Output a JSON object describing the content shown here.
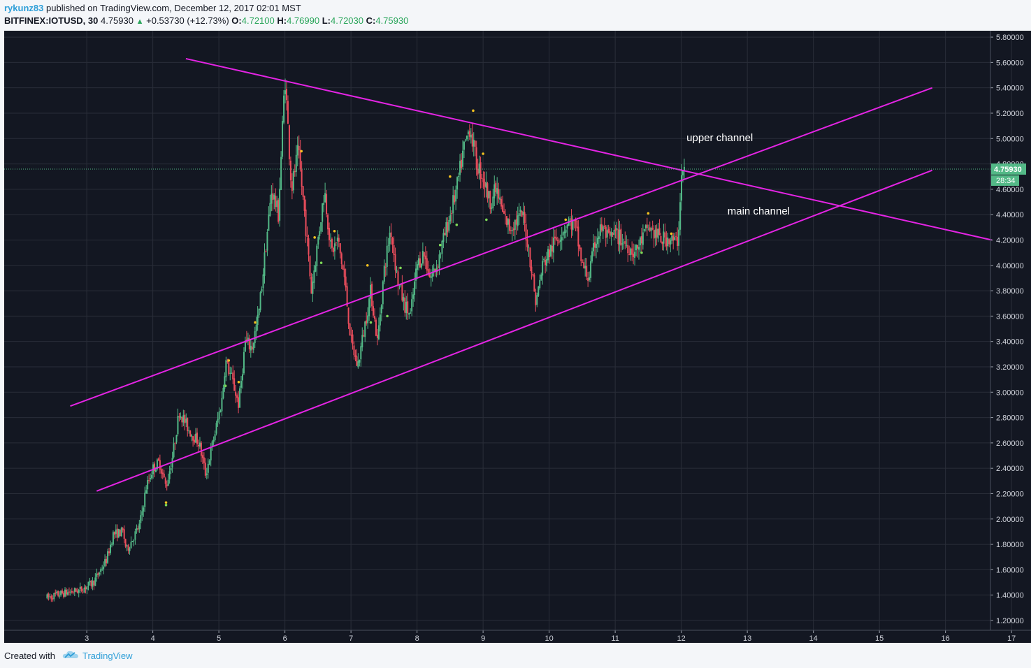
{
  "header": {
    "author": "rykunz83",
    "published_text": "published on TradingView.com, December 12, 2017 02:01 MST",
    "symbol": "BITFINEX:IOTUSD, 30",
    "last": "4.75930",
    "change": "+0.53730 (+12.73%)",
    "o_label": "O:",
    "o_value": "4.72100",
    "h_label": "H:",
    "h_value": "4.76990",
    "l_label": "L:",
    "l_value": "4.72030",
    "c_label": "C:",
    "c_value": "4.75930"
  },
  "footer": {
    "created_with": "Created with",
    "brand": "TradingView"
  },
  "chart_data": {
    "type": "candlestick",
    "symbol": "BITFINEX:IOTUSD",
    "interval": "30",
    "x_ticks": [
      "3",
      "4",
      "5",
      "6",
      "7",
      "8",
      "9",
      "10",
      "11",
      "12",
      "13",
      "14",
      "15",
      "16",
      "17"
    ],
    "y_ticks": [
      "1.20000",
      "1.40000",
      "1.60000",
      "1.80000",
      "2.00000",
      "2.20000",
      "2.40000",
      "2.60000",
      "2.80000",
      "3.00000",
      "3.20000",
      "3.40000",
      "3.60000",
      "3.80000",
      "4.00000",
      "4.20000",
      "4.40000",
      "4.60000",
      "4.80000",
      "5.00000",
      "5.20000",
      "5.40000",
      "5.60000",
      "5.80000"
    ],
    "xlim": [
      2.4,
      17.3
    ],
    "ylim": [
      1.1,
      5.85
    ],
    "grid": true,
    "last_price_label": "4.75930",
    "last_price": 4.7593,
    "countdown_label": "28:34",
    "price_path": [
      [
        2.4,
        1.38
      ],
      [
        2.6,
        1.41
      ],
      [
        2.9,
        1.44
      ],
      [
        3.1,
        1.5
      ],
      [
        3.3,
        1.68
      ],
      [
        3.4,
        1.88
      ],
      [
        3.55,
        1.9
      ],
      [
        3.6,
        1.75
      ],
      [
        3.8,
        1.95
      ],
      [
        3.9,
        2.25
      ],
      [
        4.0,
        2.4
      ],
      [
        4.1,
        2.45
      ],
      [
        4.2,
        2.25
      ],
      [
        4.3,
        2.5
      ],
      [
        4.4,
        2.85
      ],
      [
        4.55,
        2.7
      ],
      [
        4.7,
        2.6
      ],
      [
        4.8,
        2.35
      ],
      [
        4.95,
        2.7
      ],
      [
        5.05,
        2.95
      ],
      [
        5.1,
        3.25
      ],
      [
        5.2,
        3.1
      ],
      [
        5.3,
        2.9
      ],
      [
        5.4,
        3.4
      ],
      [
        5.5,
        3.35
      ],
      [
        5.6,
        3.6
      ],
      [
        5.7,
        4.1
      ],
      [
        5.8,
        4.6
      ],
      [
        5.9,
        4.4
      ],
      [
        6.0,
        5.5
      ],
      [
        6.1,
        4.6
      ],
      [
        6.2,
        4.9
      ],
      [
        6.3,
        4.4
      ],
      [
        6.4,
        3.8
      ],
      [
        6.5,
        4.2
      ],
      [
        6.6,
        4.6
      ],
      [
        6.7,
        4.1
      ],
      [
        6.8,
        4.2
      ],
      [
        6.9,
        3.9
      ],
      [
        7.0,
        3.4
      ],
      [
        7.1,
        3.2
      ],
      [
        7.2,
        3.5
      ],
      [
        7.3,
        3.8
      ],
      [
        7.4,
        3.4
      ],
      [
        7.5,
        3.95
      ],
      [
        7.6,
        4.3
      ],
      [
        7.7,
        3.9
      ],
      [
        7.8,
        3.7
      ],
      [
        7.9,
        3.6
      ],
      [
        8.0,
        4.0
      ],
      [
        8.1,
        4.1
      ],
      [
        8.2,
        3.9
      ],
      [
        8.3,
        4.0
      ],
      [
        8.4,
        4.2
      ],
      [
        8.5,
        4.4
      ],
      [
        8.6,
        4.6
      ],
      [
        8.7,
        4.9
      ],
      [
        8.8,
        5.1
      ],
      [
        8.9,
        4.8
      ],
      [
        9.0,
        4.7
      ],
      [
        9.1,
        4.5
      ],
      [
        9.2,
        4.6
      ],
      [
        9.3,
        4.4
      ],
      [
        9.4,
        4.3
      ],
      [
        9.5,
        4.35
      ],
      [
        9.6,
        4.4
      ],
      [
        9.7,
        4.1
      ],
      [
        9.8,
        3.7
      ],
      [
        9.9,
        4.0
      ],
      [
        10.0,
        4.1
      ],
      [
        10.1,
        4.2
      ],
      [
        10.3,
        4.35
      ],
      [
        10.4,
        4.3
      ],
      [
        10.5,
        4.0
      ],
      [
        10.6,
        3.9
      ],
      [
        10.7,
        4.2
      ],
      [
        10.8,
        4.3
      ],
      [
        10.9,
        4.2
      ],
      [
        11.0,
        4.25
      ],
      [
        11.2,
        4.15
      ],
      [
        11.3,
        4.1
      ],
      [
        11.4,
        4.2
      ],
      [
        11.5,
        4.3
      ],
      [
        11.6,
        4.25
      ],
      [
        11.7,
        4.2
      ],
      [
        11.8,
        4.22
      ],
      [
        11.9,
        4.18
      ],
      [
        11.95,
        4.2
      ],
      [
        12.0,
        4.7
      ],
      [
        12.05,
        4.76
      ]
    ],
    "markers_yellow": [
      [
        4.2,
        2.13
      ],
      [
        5.15,
        3.25
      ],
      [
        5.3,
        3.08
      ],
      [
        5.55,
        3.55
      ],
      [
        6.25,
        4.9
      ],
      [
        6.45,
        4.22
      ],
      [
        6.75,
        4.27
      ],
      [
        7.25,
        4.0
      ],
      [
        8.5,
        4.7
      ],
      [
        8.85,
        5.22
      ],
      [
        9.0,
        4.88
      ],
      [
        10.25,
        4.36
      ],
      [
        11.5,
        4.41
      ],
      [
        11.85,
        4.25
      ]
    ],
    "markers_green": [
      [
        4.2,
        2.11
      ],
      [
        5.1,
        3.05
      ],
      [
        6.55,
        4.02
      ],
      [
        7.3,
        3.55
      ],
      [
        7.55,
        3.6
      ],
      [
        7.75,
        3.98
      ],
      [
        8.35,
        4.16
      ],
      [
        8.6,
        4.32
      ],
      [
        9.05,
        4.36
      ],
      [
        11.4,
        4.1
      ]
    ],
    "trendlines": [
      {
        "name": "descending-resistance",
        "from": [
          4.5,
          5.63
        ],
        "to": [
          16.7,
          4.2
        ]
      },
      {
        "name": "main-channel-upper",
        "from": [
          2.75,
          2.89
        ],
        "to": [
          15.8,
          5.4
        ]
      },
      {
        "name": "main-channel-lower",
        "from": [
          3.15,
          2.22
        ],
        "to": [
          15.8,
          4.75
        ]
      }
    ],
    "annotations": [
      {
        "text": "upper channel",
        "x": 12.08,
        "y": 4.98
      },
      {
        "text": "main channel",
        "x": 12.7,
        "y": 4.4
      }
    ],
    "colors": {
      "background": "#131722",
      "grid": "#2a2e39",
      "up": "#53b987",
      "down": "#eb4d5c",
      "trendline": "#e424e4",
      "marker_yellow": "#f2c11f",
      "marker_green": "#7ed957",
      "price_label": "#53b987"
    }
  }
}
